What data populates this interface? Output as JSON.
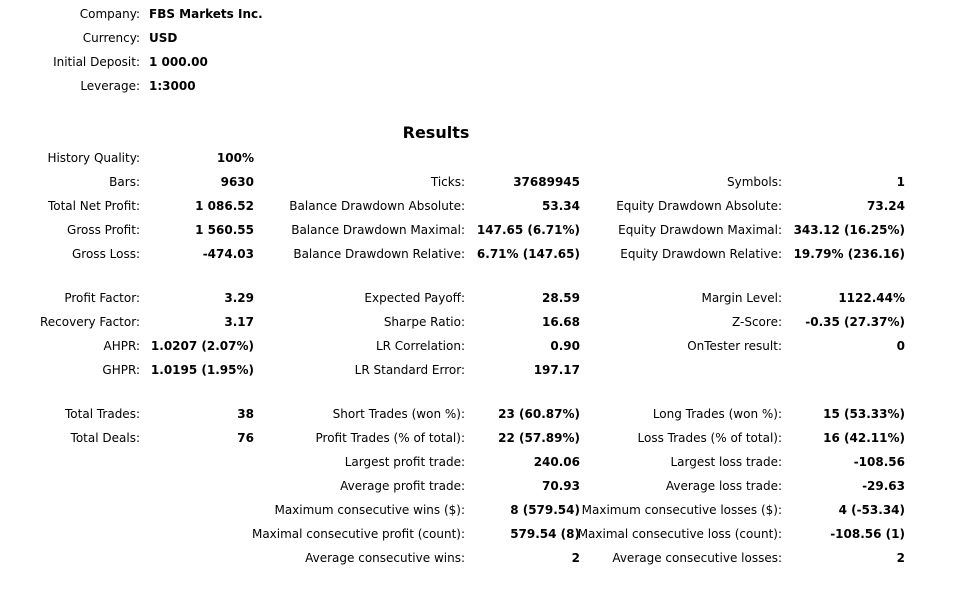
{
  "header": [
    {
      "label": "Company:",
      "value": "FBS Markets Inc."
    },
    {
      "label": "Currency:",
      "value": "USD"
    },
    {
      "label": "Initial Deposit:",
      "value": "1 000.00"
    },
    {
      "label": "Leverage:",
      "value": "1:3000"
    }
  ],
  "results": {
    "title": "Results",
    "groups": [
      [
        {
          "left": {
            "label": "History Quality:",
            "value": "100%"
          }
        },
        {
          "left": {
            "label": "Bars:",
            "value": "9630"
          },
          "middle": {
            "label": "Ticks:",
            "value": "37689945"
          },
          "right": {
            "label": "Symbols:",
            "value": "1"
          }
        },
        {
          "left": {
            "label": "Total Net Profit:",
            "value": "1 086.52"
          },
          "middle": {
            "label": "Balance Drawdown Absolute:",
            "value": "53.34"
          },
          "right": {
            "label": "Equity Drawdown Absolute:",
            "value": "73.24"
          }
        },
        {
          "left": {
            "label": "Gross Profit:",
            "value": "1 560.55"
          },
          "middle": {
            "label": "Balance Drawdown Maximal:",
            "value": "147.65 (6.71%)"
          },
          "right": {
            "label": "Equity Drawdown Maximal:",
            "value": "343.12 (16.25%)"
          }
        },
        {
          "left": {
            "label": "Gross Loss:",
            "value": "-474.03"
          },
          "middle": {
            "label": "Balance Drawdown Relative:",
            "value": "6.71% (147.65)"
          },
          "right": {
            "label": "Equity Drawdown Relative:",
            "value": "19.79% (236.16)"
          }
        }
      ],
      [
        {
          "left": {
            "label": "Profit Factor:",
            "value": "3.29"
          },
          "middle": {
            "label": "Expected Payoff:",
            "value": "28.59"
          },
          "right": {
            "label": "Margin Level:",
            "value": "1122.44%"
          }
        },
        {
          "left": {
            "label": "Recovery Factor:",
            "value": "3.17"
          },
          "middle": {
            "label": "Sharpe Ratio:",
            "value": "16.68"
          },
          "right": {
            "label": "Z-Score:",
            "value": "-0.35 (27.37%)"
          }
        },
        {
          "left": {
            "label": "AHPR:",
            "value": "1.0207 (2.07%)"
          },
          "middle": {
            "label": "LR Correlation:",
            "value": "0.90"
          },
          "right": {
            "label": "OnTester result:",
            "value": "0"
          }
        },
        {
          "left": {
            "label": "GHPR:",
            "value": "1.0195 (1.95%)"
          },
          "middle": {
            "label": "LR Standard Error:",
            "value": "197.17"
          }
        }
      ],
      [
        {
          "left": {
            "label": "Total Trades:",
            "value": "38"
          },
          "middle": {
            "label": "Short Trades (won %):",
            "value": "23 (60.87%)"
          },
          "right": {
            "label": "Long Trades (won %):",
            "value": "15 (53.33%)"
          }
        },
        {
          "left": {
            "label": "Total Deals:",
            "value": "76"
          },
          "middle": {
            "label": "Profit Trades (% of total):",
            "value": "22 (57.89%)"
          },
          "right": {
            "label": "Loss Trades (% of total):",
            "value": "16 (42.11%)"
          }
        },
        {
          "middle": {
            "label": "Largest profit trade:",
            "value": "240.06"
          },
          "right": {
            "label": "Largest loss trade:",
            "value": "-108.56"
          }
        },
        {
          "middle": {
            "label": "Average profit trade:",
            "value": "70.93"
          },
          "right": {
            "label": "Average loss trade:",
            "value": "-29.63"
          }
        },
        {
          "middle": {
            "label": "Maximum consecutive wins ($):",
            "value": "8 (579.54)"
          },
          "right": {
            "label": "Maximum consecutive losses ($):",
            "value": "4 (-53.34)"
          }
        },
        {
          "middle": {
            "label": "Maximal consecutive profit (count):",
            "value": "579.54 (8)"
          },
          "right": {
            "label": "Maximal consecutive loss (count):",
            "value": "-108.56 (1)"
          }
        },
        {
          "middle": {
            "label": "Average consecutive wins:",
            "value": "2"
          },
          "right": {
            "label": "Average consecutive losses:",
            "value": "2"
          }
        }
      ]
    ]
  }
}
